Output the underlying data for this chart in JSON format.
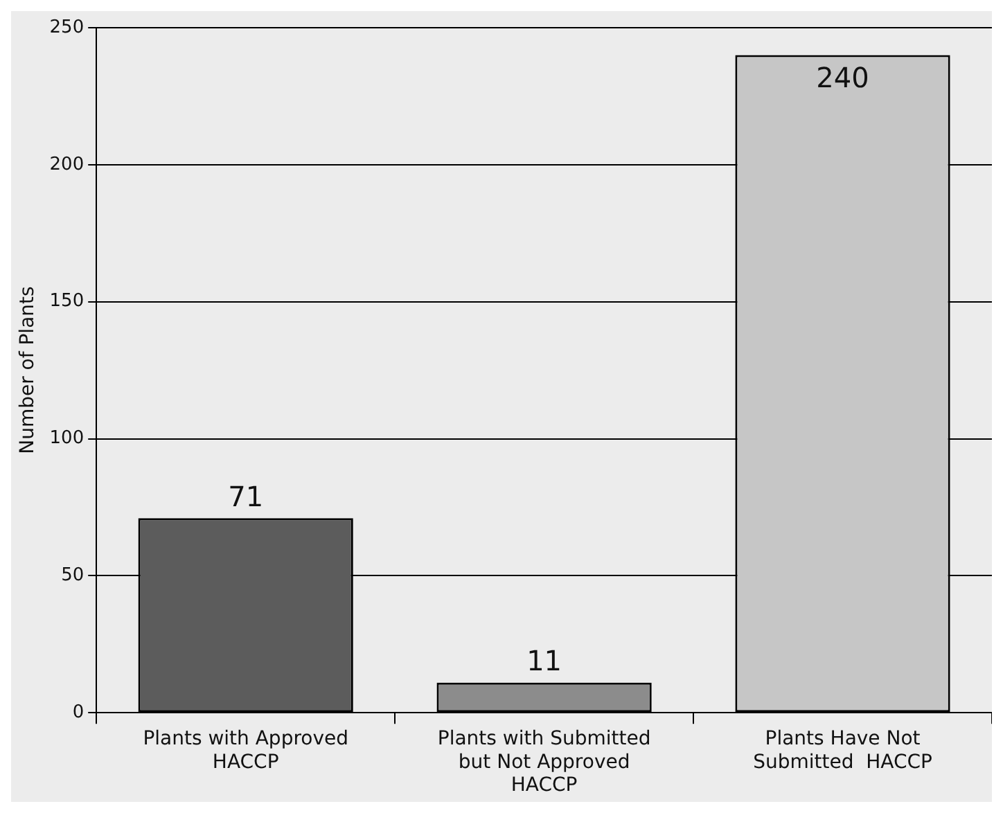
{
  "chart_data": {
    "type": "bar",
    "ylabel": "Number of Plants",
    "categories": [
      "Plants with Approved HACCP",
      "Plants with Submitted but Not Approved HACCP",
      "Plants Have Not Submitted  HACCP"
    ],
    "values": [
      71,
      11,
      240
    ],
    "colors": [
      "#5c5c5c",
      "#8c8c8c",
      "#c6c6c6"
    ],
    "ylim": [
      0,
      250
    ],
    "yticks": [
      0,
      50,
      100,
      150,
      200,
      250
    ],
    "grid": "y",
    "data_labels": true
  }
}
